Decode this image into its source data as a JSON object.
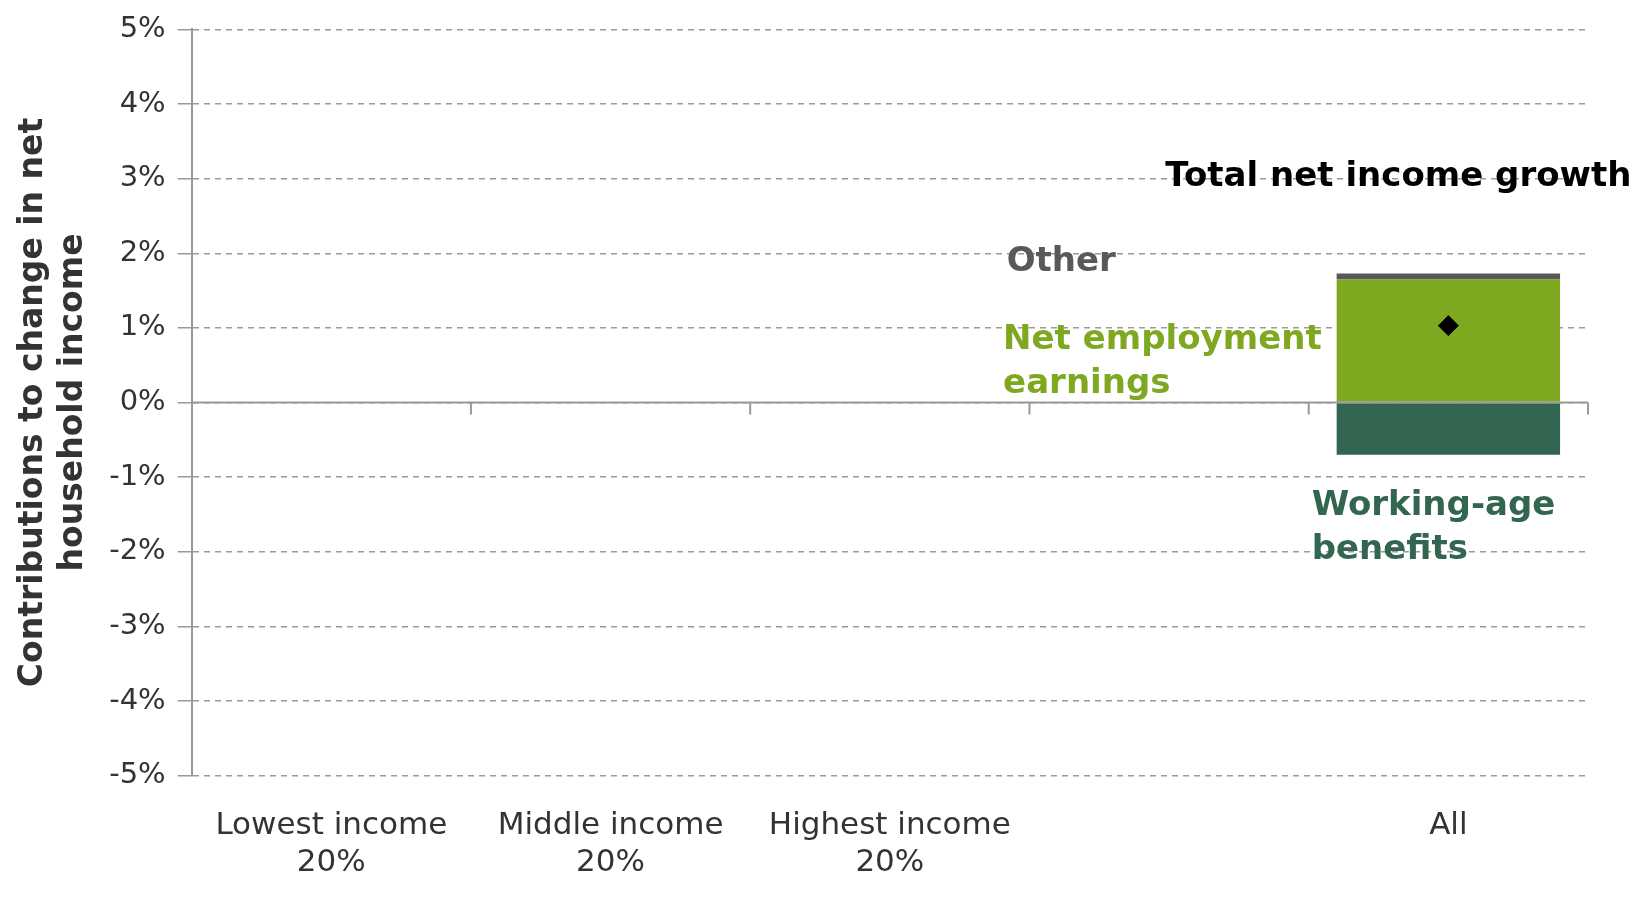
{
  "chart_data": {
    "type": "bar",
    "stacked": true,
    "ylabel": "Contributions to change in net household income",
    "categories": [
      "Lowest income 20%",
      "Middle income 20%",
      "Highest income 20%",
      null,
      "All"
    ],
    "series": [
      {
        "name": "Working-age benefits",
        "color": "#336650",
        "values": [
          null,
          null,
          null,
          null,
          -0.7
        ]
      },
      {
        "name": "Net employment earnings",
        "color": "#7ea81f",
        "values": [
          null,
          null,
          null,
          null,
          1.65
        ]
      },
      {
        "name": "Other",
        "color": "#595959",
        "values": [
          null,
          null,
          null,
          null,
          0.08
        ]
      },
      {
        "name": "Total net income growth",
        "type": "scatter",
        "color": "#000000",
        "marker": "diamond",
        "x": [
          "All"
        ],
        "values": [
          1.03
        ]
      }
    ],
    "ylim": [
      -5,
      5
    ],
    "yticks": [
      {
        "value": -5,
        "label": "-5%"
      },
      {
        "value": -4,
        "label": "-4%"
      },
      {
        "value": -3,
        "label": "-3%"
      },
      {
        "value": -2,
        "label": "-2%"
      },
      {
        "value": -1,
        "label": "-1%"
      },
      {
        "value": 0,
        "label": "0%"
      },
      {
        "value": 1,
        "label": "1%"
      },
      {
        "value": 2,
        "label": "2%"
      },
      {
        "value": 3,
        "label": "3%"
      },
      {
        "value": 4,
        "label": "4%"
      },
      {
        "value": 5,
        "label": "5%"
      }
    ],
    "grid": "y",
    "legend": false
  }
}
